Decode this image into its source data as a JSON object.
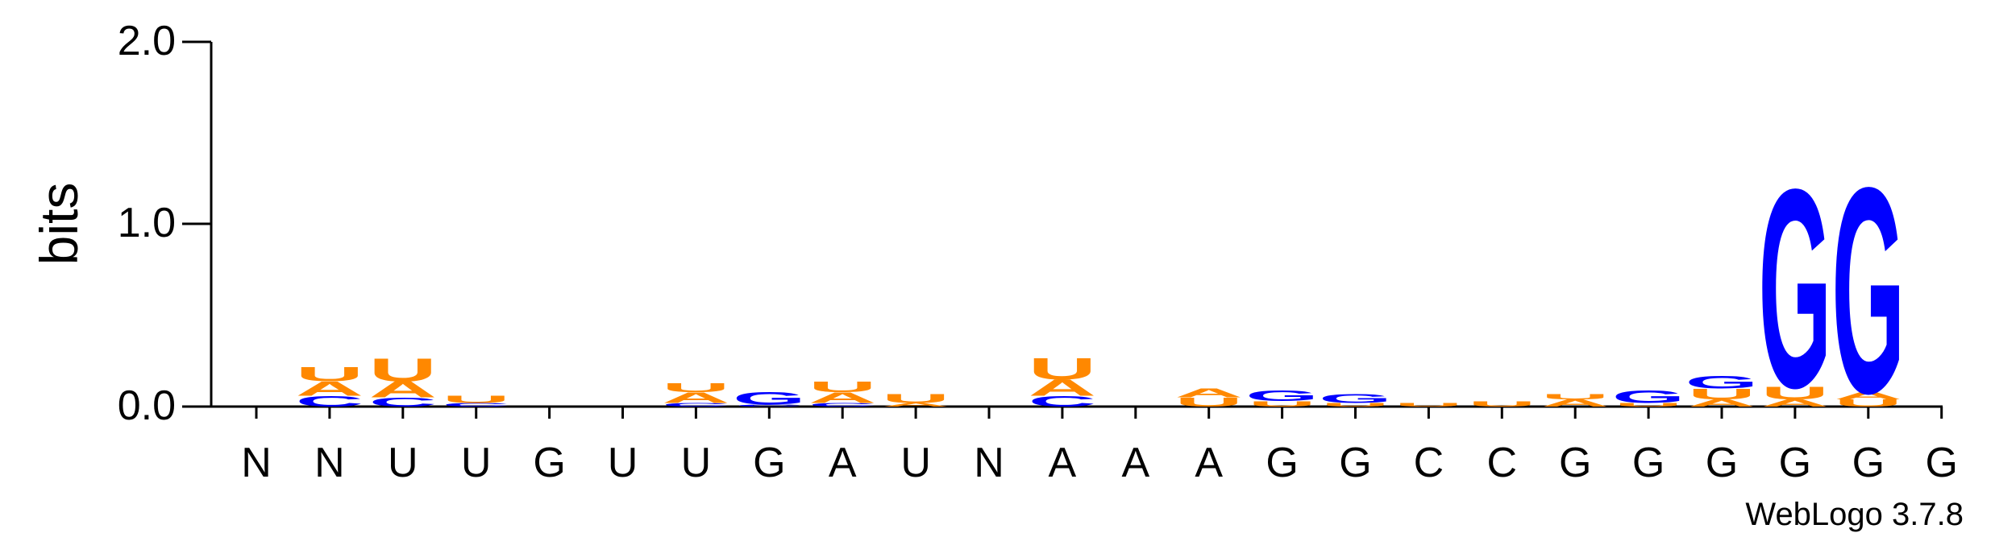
{
  "chart_data": {
    "type": "sequence-logo",
    "ylabel": "bits",
    "ylim": [
      0,
      2.0
    ],
    "yticks": [
      "0.0",
      "1.0",
      "2.0"
    ],
    "colors": {
      "A": "#ff8800",
      "U": "#ff8800",
      "G": "#0000ff",
      "C": "#0000ff"
    },
    "positions": [
      "N",
      "N",
      "U",
      "U",
      "G",
      "U",
      "U",
      "G",
      "A",
      "U",
      "N",
      "A",
      "A",
      "A",
      "G",
      "G",
      "C",
      "C",
      "G",
      "G",
      "G",
      "G",
      "G",
      "G"
    ],
    "stacks": [
      [],
      [
        [
          "C",
          0.06
        ],
        [
          "A",
          0.08
        ],
        [
          "U",
          0.08
        ]
      ],
      [
        [
          "C",
          0.05
        ],
        [
          "A",
          0.09
        ],
        [
          "U",
          0.13
        ]
      ],
      [
        [
          "C",
          0.02
        ],
        [
          "U",
          0.04
        ]
      ],
      [],
      [],
      [
        [
          "C",
          0.02
        ],
        [
          "A",
          0.06
        ],
        [
          "U",
          0.05
        ]
      ],
      [
        [
          "C",
          0.01
        ],
        [
          "G",
          0.07
        ]
      ],
      [
        [
          "C",
          0.02
        ],
        [
          "A",
          0.06
        ],
        [
          "U",
          0.06
        ]
      ],
      [
        [
          "A",
          0.02
        ],
        [
          "U",
          0.05
        ]
      ],
      [],
      [
        [
          "C",
          0.06
        ],
        [
          "A",
          0.09
        ],
        [
          "U",
          0.12
        ]
      ],
      [],
      [
        [
          "U",
          0.05
        ],
        [
          "A",
          0.05
        ]
      ],
      [
        [
          "U",
          0.03
        ],
        [
          "G",
          0.06
        ]
      ],
      [
        [
          "U",
          0.02
        ],
        [
          "G",
          0.05
        ]
      ],
      [
        [
          "U",
          0.02
        ]
      ],
      [
        [
          "U",
          0.03
        ]
      ],
      [
        [
          "A",
          0.04
        ],
        [
          "U",
          0.03
        ]
      ],
      [
        [
          "U",
          0.02
        ],
        [
          "G",
          0.07
        ]
      ],
      [
        [
          "A",
          0.04
        ],
        [
          "U",
          0.06
        ],
        [
          "G",
          0.07
        ]
      ],
      [
        [
          "A",
          0.04
        ],
        [
          "U",
          0.07
        ],
        [
          "G",
          1.12
        ]
      ],
      [
        [
          "U",
          0.04
        ],
        [
          "A",
          0.04
        ],
        [
          "G",
          1.16
        ]
      ],
      []
    ]
  },
  "credit": "WebLogo 3.7.8"
}
